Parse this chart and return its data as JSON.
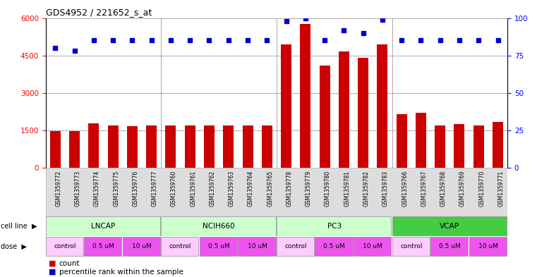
{
  "title": "GDS4952 / 221652_s_at",
  "samples": [
    "GSM1359772",
    "GSM1359773",
    "GSM1359774",
    "GSM1359775",
    "GSM1359776",
    "GSM1359777",
    "GSM1359760",
    "GSM1359761",
    "GSM1359762",
    "GSM1359763",
    "GSM1359764",
    "GSM1359765",
    "GSM1359778",
    "GSM1359779",
    "GSM1359780",
    "GSM1359781",
    "GSM1359782",
    "GSM1359783",
    "GSM1359766",
    "GSM1359767",
    "GSM1359768",
    "GSM1359769",
    "GSM1359770",
    "GSM1359771"
  ],
  "counts": [
    1480,
    1480,
    1780,
    1700,
    1680,
    1700,
    1700,
    1700,
    1700,
    1700,
    1700,
    1700,
    4950,
    5750,
    4100,
    4650,
    4400,
    4950,
    2150,
    2200,
    1700,
    1750,
    1700,
    1850
  ],
  "percentile_ranks": [
    80,
    78,
    85,
    85,
    85,
    85,
    85,
    85,
    85,
    85,
    85,
    85,
    98,
    100,
    85,
    92,
    90,
    99,
    85,
    85,
    85,
    85,
    85,
    85
  ],
  "cell_lines": [
    {
      "name": "LNCAP",
      "start": 0,
      "end": 6,
      "color": "#ccffcc"
    },
    {
      "name": "NCIH660",
      "start": 6,
      "end": 12,
      "color": "#ccffcc"
    },
    {
      "name": "PC3",
      "start": 12,
      "end": 18,
      "color": "#ccffcc"
    },
    {
      "name": "VCAP",
      "start": 18,
      "end": 24,
      "color": "#44cc44"
    }
  ],
  "dose_labels": [
    "control",
    "0.5 uM",
    "10 uM",
    "control",
    "0.5 uM",
    "10 uM",
    "control",
    "0.5 uM",
    "10 uM",
    "control",
    "0.5 uM",
    "10 uM"
  ],
  "dose_starts": [
    0,
    2,
    4,
    6,
    8,
    10,
    12,
    14,
    16,
    18,
    20,
    22
  ],
  "dose_ends": [
    2,
    4,
    6,
    8,
    10,
    12,
    14,
    16,
    18,
    20,
    22,
    24
  ],
  "dose_color_map": {
    "control": "#ffccff",
    "0.5 uM": "#ee55ee",
    "10 uM": "#ee55ee"
  },
  "bar_color": "#cc0000",
  "dot_color": "#0000cc",
  "ylim_left": [
    0,
    6000
  ],
  "ylim_right": [
    0,
    100
  ],
  "yticks_left": [
    0,
    1500,
    3000,
    4500,
    6000
  ],
  "yticks_right": [
    0,
    25,
    50,
    75,
    100
  ],
  "bg_color": "#ffffff",
  "plot_bg": "#ffffff",
  "title_fontsize": 9,
  "tick_fontsize": 7.5,
  "label_fontsize": 7,
  "row_label_fontsize": 8,
  "sample_label_bg": "#dddddd"
}
